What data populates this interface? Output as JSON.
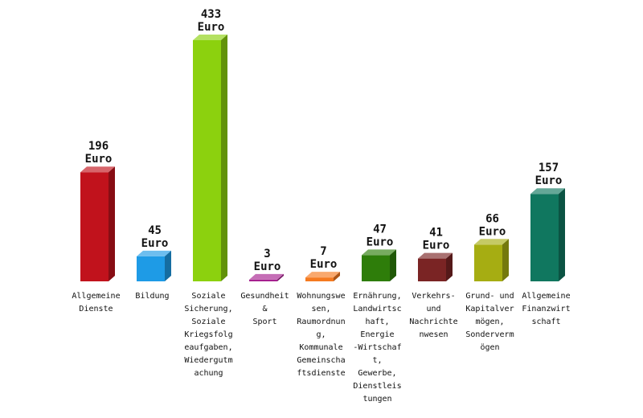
{
  "chart_data": {
    "type": "bar",
    "unit": "Euro",
    "categories": [
      "Allgemeine Dienste",
      "Bildung",
      "Soziale Sicherung, Soziale Kriegsfolgeaufgaben, Wiedergutmachung",
      "Gesundheit & Sport",
      "Wohnungswesen, Raumordnung, Kommunale Gemeinschaftsdienste",
      "Ernährung, Landwirtschaft, Energie-Wirtschaft, Gewerbe, Dienstleistungen",
      "Verkehrs- und Nachrichtenwesen",
      "Grund- und Kapitalvermögen, Sondervermögen",
      "Allgemeine Finanzwirtschaft"
    ],
    "category_lines": [
      [
        "Allgemeine",
        "Dienste"
      ],
      [
        "Bildung"
      ],
      [
        "Soziale",
        "Sicherung,",
        "Soziale",
        "Kriegsfolg",
        "eaufgaben,",
        "Wiedergutm",
        "achung"
      ],
      [
        "Gesundheit",
        "&",
        "Sport"
      ],
      [
        "Wohnungswe",
        "sen,",
        "Raumordnun",
        "g,",
        "Kommunale",
        "Gemeinscha",
        "ftsdienste"
      ],
      [
        "Ernährung,",
        "Landwirtsc",
        "haft,",
        "Energie",
        "-Wirtschaf",
        "t,",
        "Gewerbe,",
        "Dienstleis",
        "tungen"
      ],
      [
        "Verkehrs-",
        "und",
        "Nachrichte",
        "nwesen"
      ],
      [
        "Grund- und",
        "Kapitalver",
        "mögen,",
        "Sonderverm",
        "ögen"
      ],
      [
        "Allgemeine",
        "Finanzwirt",
        "schaft"
      ]
    ],
    "values": [
      196,
      45,
      433,
      3,
      7,
      47,
      41,
      66,
      157
    ],
    "colors": [
      "#c1121c",
      "#1e9be6",
      "#8cd10e",
      "#a6208e",
      "#f57a20",
      "#2e7d0a",
      "#7a2424",
      "#a6ad12",
      "#10775f"
    ],
    "ylim": [
      0,
      433
    ],
    "grid": false,
    "legend": "none"
  }
}
